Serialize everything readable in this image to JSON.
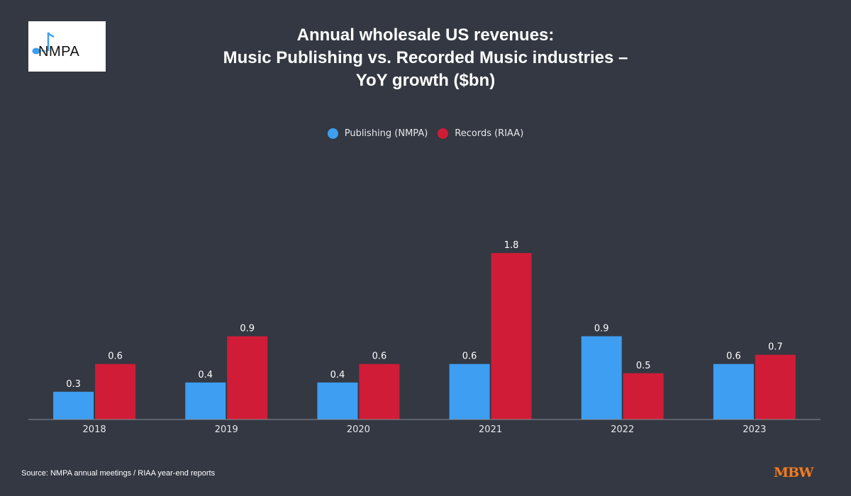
{
  "logo": {
    "text": "NMPA"
  },
  "title_lines": [
    "Annual wholesale US revenues:",
    "Music Publishing vs. Recorded Music industries –",
    "YoY growth ($bn)"
  ],
  "source": "Source: NMPA annual meetings / RIAA year-end reports",
  "brand": "MBW",
  "colors": {
    "publishing": "#3d9ef2",
    "records": "#d01c37",
    "background": "#333842"
  },
  "chart_data": {
    "type": "bar",
    "title": "Annual wholesale US revenues: Music Publishing vs. Recorded Music industries – YoY growth ($bn)",
    "categories": [
      "2018",
      "2019",
      "2020",
      "2021",
      "2022",
      "2023"
    ],
    "series": [
      {
        "name": "Publishing (NMPA)",
        "values": [
          0.3,
          0.4,
          0.4,
          0.6,
          0.9,
          0.6
        ]
      },
      {
        "name": "Records (RIAA)",
        "values": [
          0.6,
          0.9,
          0.6,
          1.8,
          0.5,
          0.7
        ]
      }
    ],
    "labels": [
      [
        "0.3",
        "0.4",
        "0.4",
        "0.6",
        "0.9",
        "0.6"
      ],
      [
        "0.6",
        "0.9",
        "0.6",
        "1.8",
        "0.5",
        "0.7"
      ]
    ],
    "xlabel": "",
    "ylabel": "",
    "ylim": [
      0,
      2.1
    ],
    "grid": false,
    "legend": "top-center"
  }
}
